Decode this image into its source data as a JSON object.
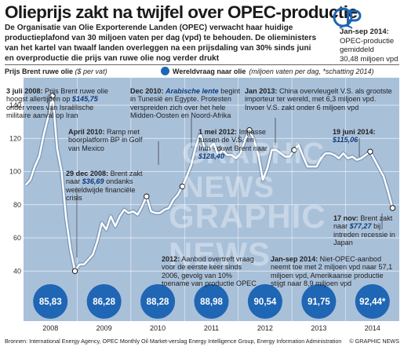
{
  "header": {
    "title": "Olieprijs zakt na twijfel over OPEC-productie",
    "intro": "De Organisatie van Olie Exporterende Landen (OPEC) verwacht haar huidige productieplafond van 30 miljoen vaten per dag (vpd) te behouden. De olieministers van het kartel van twaalf landen overleggen na een prijsdaling van 30% sinds juni en overproductie die prijs van ruwe olie nog verder drukt",
    "side_period": "Jan-sep 2014:",
    "side_text1": "OPEC-productie",
    "side_text2": "gemiddeld",
    "side_text3": "30,48 miljoen vpd"
  },
  "legend": {
    "axis_title": "Prijs Brent ruwe olie",
    "axis_unit": "($ per vat)",
    "demand_label": "Wereldvraag naar olie",
    "demand_unit": "(miljoen  vaten per dag, *schatting 2014)"
  },
  "annotations": {
    "a2008_date": "3 juli 2008:",
    "a2008_text": " Prijs Brent ruwe olie hoogst allertijden op ",
    "a2008_price": "$145,75",
    "a2008_text2": " onder vrees van Israëlische militaire aanval op Iran",
    "a2010_date": "April 2010:",
    "a2010_text": " Ramp met boorplatform BP in Golf van Mexico",
    "adec08_date": "29 dec 2008:",
    "adec08_text": " Brent zakt naar ",
    "adec08_price": "$36,69",
    "adec08_text2": " ondanks wereldwijde financiële crisis",
    "adec10_date": "Dec 2010:",
    "adec10_em": "Arabische lente",
    "adec10_text": " begint in Tunesië en Egypte. Protesten verspreiden zich over het hele Midden-Oosten en Noord-Afrika",
    "amay11_date": "1 mei 2012:",
    "amay11_text": " Impasse tussen de V.S. en Iran - duwt Brent naar ",
    "amay11_price": "$128,40",
    "ajan13_date": "Jan 2013:",
    "ajan13_text": " China overvleugelt V.S. als grootste importeur ter wereld, met 6,3 miljoen vpd. Invoer V.S. zakt onder 6 miljoen vpd",
    "ajun14_date": "19 juni 2014:",
    "ajun14_price": "$115,06",
    "anov14_date": "17 nov:",
    "anov14_text": " Brent zakt naar ",
    "anov14_price": "$77,27",
    "anov14_text2": " bij intreden recessie in Japan",
    "a2012_date": "2012:",
    "a2012_text": " Aanbod overtreft vraag voor de eerste keer sinds 2006, gevolg van 10% toename van productie OPEC",
    "ajansep_date": "Jan-sep 2014:",
    "ajansep_text": " Niet-OPEC-aanbod neemt toe met 2 miljoen vpd naar 57,1 miljoen vpd, Amerikaanse productie stijgt naar 8,9 miljoen vpd"
  },
  "watermark": {
    "line1": "GRAPHIC NEWS",
    "line2": "GRAPHIC NEWS"
  },
  "footer": {
    "sources": "Bronnen: International Energy Agency, OPEC Monthly Oil Market-verslag Energy Intelligence Group, Energy Information Administration",
    "copyright": "© GRAPHIC NEWS"
  },
  "colors": {
    "plot_bg": "#a9c0d9",
    "line": "#ffffff",
    "bubble": "#1f66b4",
    "highlight": "#f4b400",
    "text_blue": "#0d3b7a"
  },
  "chart_data": {
    "type": "line",
    "ylabel": "Prijs Brent ruwe olie ($ per vat)",
    "ylim": [
      40,
      150
    ],
    "yticks": [
      40,
      60,
      80,
      100,
      120,
      140
    ],
    "year_labels": [
      "2008",
      "2009",
      "2010",
      "2011",
      "2012",
      "2013",
      "2014"
    ],
    "grid": true,
    "series": [
      {
        "name": "Prijs Brent ruwe olie",
        "x": [
          "2008-01",
          "2008-02",
          "2008-03",
          "2008-04",
          "2008-05",
          "2008-06",
          "2008-07",
          "2008-08",
          "2008-09",
          "2008-10",
          "2008-11",
          "2008-12",
          "2009-01",
          "2009-02",
          "2009-03",
          "2009-04",
          "2009-05",
          "2009-06",
          "2009-07",
          "2009-08",
          "2009-09",
          "2009-10",
          "2009-11",
          "2009-12",
          "2010-01",
          "2010-02",
          "2010-03",
          "2010-04",
          "2010-05",
          "2010-06",
          "2010-07",
          "2010-08",
          "2010-09",
          "2010-10",
          "2010-11",
          "2010-12",
          "2011-01",
          "2011-02",
          "2011-03",
          "2011-04",
          "2011-05",
          "2011-06",
          "2011-07",
          "2011-08",
          "2011-09",
          "2011-10",
          "2011-11",
          "2011-12",
          "2012-01",
          "2012-02",
          "2012-03",
          "2012-04",
          "2012-05",
          "2012-06",
          "2012-07",
          "2012-08",
          "2012-09",
          "2012-10",
          "2012-11",
          "2012-12",
          "2013-01",
          "2013-02",
          "2013-03",
          "2013-04",
          "2013-05",
          "2013-06",
          "2013-07",
          "2013-08",
          "2013-09",
          "2013-10",
          "2013-11",
          "2013-12",
          "2014-01",
          "2014-02",
          "2014-03",
          "2014-04",
          "2014-05",
          "2014-06",
          "2014-07",
          "2014-08",
          "2014-09",
          "2014-10",
          "2014-11"
        ],
        "values": [
          92,
          95,
          103,
          109,
          122,
          133,
          145.75,
          114,
          100,
          72,
          53,
          40,
          44,
          44,
          47,
          50,
          58,
          69,
          65,
          73,
          67,
          73,
          77,
          75,
          76,
          74,
          79,
          85,
          76,
          75,
          75,
          77,
          78,
          83,
          86,
          91,
          97,
          104,
          115,
          123,
          114,
          114,
          117,
          110,
          113,
          110,
          110,
          108,
          111,
          119,
          125,
          119,
          110,
          95,
          102,
          113,
          113,
          111,
          109,
          109,
          113,
          116,
          109,
          103,
          103,
          103,
          108,
          111,
          111,
          110,
          108,
          111,
          108,
          109,
          107,
          108,
          110,
          112,
          107,
          102,
          97,
          88,
          78
        ]
      }
    ],
    "demand": {
      "name": "Wereldvraag naar olie",
      "categories": [
        "2008",
        "2009",
        "2010",
        "2011",
        "2012",
        "2013",
        "2014"
      ],
      "values": [
        "85,83",
        "86,28",
        "88,28",
        "88,98",
        "90,54",
        "91,75",
        "92,44*"
      ]
    }
  }
}
